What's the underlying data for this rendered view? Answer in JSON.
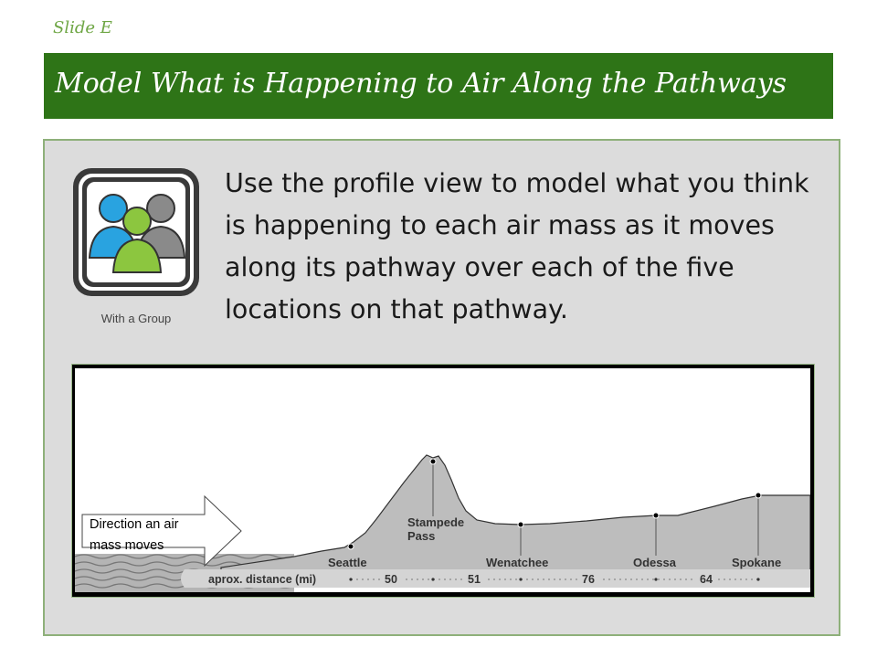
{
  "slide": {
    "label": "Slide E",
    "title": "Model What is Happening to Air Along the Pathways"
  },
  "activity": {
    "icon": "group-people-icon",
    "caption": "With a Group",
    "instruction": "Use the profile view to model what you think is happening to each air mass as it moves along its pathway over each of the five locations on that pathway."
  },
  "profile": {
    "arrow_line1": "Direction an air",
    "arrow_line2": "mass moves",
    "distance_label": "aprox. distance (mi)",
    "locations": [
      {
        "name": "Seattle"
      },
      {
        "name": "Stampede",
        "name2": "Pass"
      },
      {
        "name": "Wenatchee"
      },
      {
        "name": "Odessa"
      },
      {
        "name": "Spokane"
      }
    ],
    "distances": [
      "50",
      "51",
      "76",
      "64"
    ],
    "colors": {
      "terrain": "#bdbdbd",
      "water": "#b4b4b4",
      "band": "#d4d4d4",
      "title_bar": "#2e7417",
      "accent_green": "#8cc63f",
      "accent_blue": "#29a3e0"
    }
  }
}
